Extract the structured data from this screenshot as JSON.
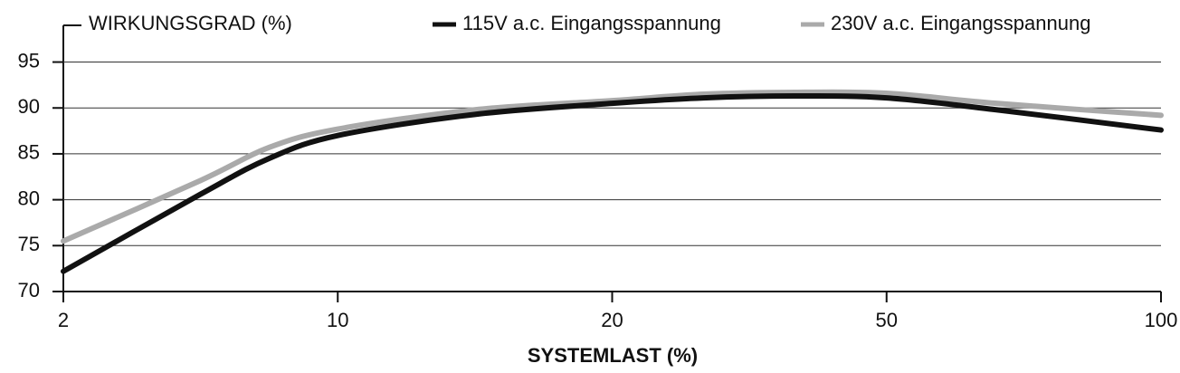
{
  "chart_data": {
    "type": "line",
    "y_label": "WIRKUNGSGRAD (%)",
    "x_label": "SYSTEMLAST (%)",
    "x": [
      2,
      6,
      8,
      10,
      15,
      20,
      30,
      40,
      50,
      70,
      100
    ],
    "series": [
      {
        "name": "115V a.c. Eingangsspannung",
        "color": "#111111",
        "values": [
          72.2,
          80.6,
          84.5,
          87.0,
          89.3,
          90.5,
          91.1,
          91.3,
          91.1,
          89.8,
          87.6
        ]
      },
      {
        "name": "230V a.c. Eingangsspannung",
        "color": "#aaaaaa",
        "values": [
          75.5,
          82.1,
          85.7,
          87.7,
          89.8,
          90.8,
          91.5,
          91.7,
          91.6,
          90.5,
          89.2
        ]
      }
    ],
    "xlim": [
      2,
      100
    ],
    "xticks": [
      2,
      10,
      20,
      50,
      100
    ],
    "ylim": [
      70,
      99
    ],
    "yticks": [
      70,
      75,
      80,
      85,
      90,
      95
    ],
    "grid": true
  }
}
